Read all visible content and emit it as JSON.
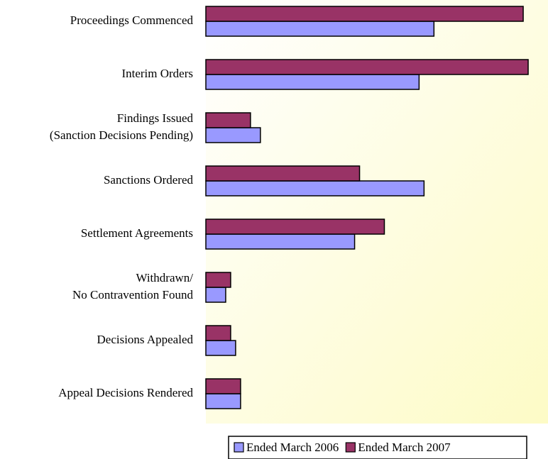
{
  "chart_data": {
    "type": "bar",
    "orientation": "horizontal",
    "categories": [
      [
        "Proceedings Commenced"
      ],
      [
        "Interim Orders"
      ],
      [
        "Findings Issued",
        "(Sanction Decisions Pending)"
      ],
      [
        "Sanctions Ordered"
      ],
      [
        "Settlement Agreements"
      ],
      [
        "Withdrawn/",
        "No Contravention Found"
      ],
      [
        "Decisions Appealed"
      ],
      [
        "Appeal Decisions Rendered"
      ]
    ],
    "series": [
      {
        "name": "Ended March 2006",
        "color": "#9999ff",
        "values": [
          46,
          43,
          11,
          44,
          30,
          4,
          6,
          7
        ]
      },
      {
        "name": "Ended March 2007",
        "color": "#993366",
        "values": [
          64,
          65,
          9,
          31,
          36,
          5,
          5,
          7
        ]
      }
    ],
    "xlim": [
      0,
      69
    ],
    "legend": "bottom"
  }
}
